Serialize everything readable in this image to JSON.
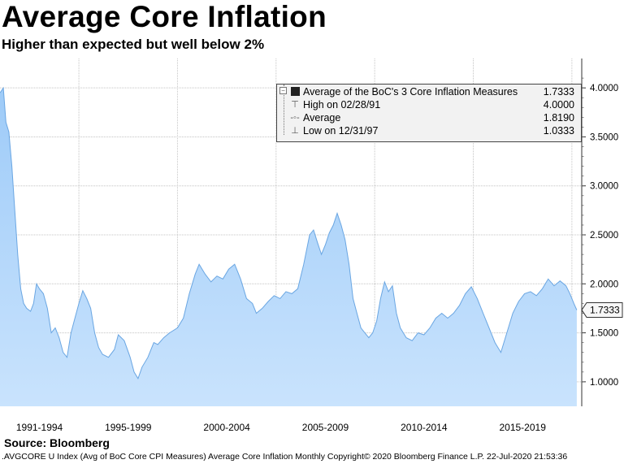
{
  "title": "Average Core Inflation",
  "subtitle": "Higher than expected but well below 2%",
  "source": "Source: Bloomberg",
  "footer": ".AVGCORE U Index (Avg of BoC Core CPI Measures) Average Core Inflation  Monthly Copyright© 2020 Bloomberg Finance L.P. 22-Jul-2020 21:53:36",
  "legend": {
    "items": [
      {
        "label": "Average of the BoC's 3 Core Inflation Measures",
        "value": "1.7333",
        "icon": "filled-square-icon"
      },
      {
        "label": "High on 02/28/91",
        "value": "4.0000",
        "icon": "high-marker-icon"
      },
      {
        "label": "Average",
        "value": "1.8190",
        "icon": "average-line-icon"
      },
      {
        "label": "Low on 12/31/97",
        "value": "1.0333",
        "icon": "low-marker-icon"
      }
    ]
  },
  "last_value_label": "1.7333",
  "colors": {
    "fill": "#a9d1fa",
    "fill_bottom": "#c6e2fd",
    "line": "#4a8fd4",
    "grid": "#bdbdbd"
  },
  "chart_data": {
    "type": "area",
    "title": "Average Core Inflation",
    "subtitle": "Higher than expected but well below 2%",
    "xlabel": "",
    "ylabel": "",
    "x_range": [
      1991.0,
      2020.5
    ],
    "ylim": [
      0.75,
      4.3
    ],
    "y_ticks": [
      "1.0000",
      "1.5000",
      "2.0000",
      "2.5000",
      "3.0000",
      "3.5000",
      "4.0000"
    ],
    "y_tick_values": [
      1.0,
      1.5,
      2.0,
      2.5,
      3.0,
      3.5,
      4.0
    ],
    "x_tick_labels": [
      "1991-1994",
      "1995-1999",
      "2000-2004",
      "2005-2009",
      "2010-2014",
      "2015-2019"
    ],
    "x_tick_centers": [
      1993.0,
      1997.5,
      2002.5,
      2007.5,
      2012.5,
      2017.5
    ],
    "grid": true,
    "legend_position": "top-right",
    "series": [
      {
        "name": "Average of the BoC's 3 Core Inflation Measures",
        "points": [
          [
            1991.0,
            3.95
          ],
          [
            1991.17,
            4.0
          ],
          [
            1991.3,
            3.65
          ],
          [
            1991.45,
            3.55
          ],
          [
            1991.6,
            3.2
          ],
          [
            1991.75,
            2.75
          ],
          [
            1991.9,
            2.3
          ],
          [
            1992.05,
            1.95
          ],
          [
            1992.2,
            1.8
          ],
          [
            1992.35,
            1.75
          ],
          [
            1992.55,
            1.72
          ],
          [
            1992.7,
            1.8
          ],
          [
            1992.85,
            2.0
          ],
          [
            1993.0,
            1.95
          ],
          [
            1993.2,
            1.9
          ],
          [
            1993.4,
            1.75
          ],
          [
            1993.6,
            1.5
          ],
          [
            1993.8,
            1.55
          ],
          [
            1994.0,
            1.45
          ],
          [
            1994.2,
            1.3
          ],
          [
            1994.4,
            1.25
          ],
          [
            1994.6,
            1.5
          ],
          [
            1994.8,
            1.65
          ],
          [
            1995.0,
            1.8
          ],
          [
            1995.2,
            1.93
          ],
          [
            1995.4,
            1.85
          ],
          [
            1995.6,
            1.75
          ],
          [
            1995.8,
            1.5
          ],
          [
            1996.0,
            1.35
          ],
          [
            1996.2,
            1.28
          ],
          [
            1996.5,
            1.25
          ],
          [
            1996.8,
            1.33
          ],
          [
            1997.0,
            1.48
          ],
          [
            1997.3,
            1.42
          ],
          [
            1997.6,
            1.25
          ],
          [
            1997.8,
            1.1
          ],
          [
            1998.0,
            1.0333
          ],
          [
            1998.2,
            1.15
          ],
          [
            1998.5,
            1.25
          ],
          [
            1998.8,
            1.4
          ],
          [
            1999.0,
            1.38
          ],
          [
            1999.3,
            1.45
          ],
          [
            1999.6,
            1.5
          ],
          [
            2000.0,
            1.55
          ],
          [
            2000.3,
            1.65
          ],
          [
            2000.6,
            1.9
          ],
          [
            2000.9,
            2.1
          ],
          [
            2001.1,
            2.2
          ],
          [
            2001.4,
            2.1
          ],
          [
            2001.7,
            2.02
          ],
          [
            2002.0,
            2.08
          ],
          [
            2002.3,
            2.05
          ],
          [
            2002.6,
            2.15
          ],
          [
            2002.9,
            2.2
          ],
          [
            2003.2,
            2.05
          ],
          [
            2003.5,
            1.85
          ],
          [
            2003.8,
            1.8
          ],
          [
            2004.0,
            1.7
          ],
          [
            2004.3,
            1.75
          ],
          [
            2004.6,
            1.82
          ],
          [
            2004.9,
            1.88
          ],
          [
            2005.2,
            1.85
          ],
          [
            2005.5,
            1.92
          ],
          [
            2005.8,
            1.9
          ],
          [
            2006.1,
            1.95
          ],
          [
            2006.4,
            2.2
          ],
          [
            2006.7,
            2.5
          ],
          [
            2006.9,
            2.55
          ],
          [
            2007.1,
            2.42
          ],
          [
            2007.3,
            2.3
          ],
          [
            2007.5,
            2.4
          ],
          [
            2007.7,
            2.52
          ],
          [
            2007.9,
            2.6
          ],
          [
            2008.1,
            2.72
          ],
          [
            2008.3,
            2.6
          ],
          [
            2008.5,
            2.45
          ],
          [
            2008.7,
            2.2
          ],
          [
            2008.9,
            1.85
          ],
          [
            2009.1,
            1.7
          ],
          [
            2009.3,
            1.55
          ],
          [
            2009.5,
            1.5
          ],
          [
            2009.7,
            1.45
          ],
          [
            2009.9,
            1.5
          ],
          [
            2010.1,
            1.62
          ],
          [
            2010.3,
            1.85
          ],
          [
            2010.5,
            2.02
          ],
          [
            2010.7,
            1.92
          ],
          [
            2010.9,
            1.98
          ],
          [
            2011.1,
            1.7
          ],
          [
            2011.3,
            1.55
          ],
          [
            2011.6,
            1.45
          ],
          [
            2011.9,
            1.42
          ],
          [
            2012.2,
            1.5
          ],
          [
            2012.5,
            1.48
          ],
          [
            2012.8,
            1.55
          ],
          [
            2013.1,
            1.65
          ],
          [
            2013.4,
            1.7
          ],
          [
            2013.7,
            1.65
          ],
          [
            2014.0,
            1.7
          ],
          [
            2014.3,
            1.78
          ],
          [
            2014.6,
            1.9
          ],
          [
            2014.9,
            1.97
          ],
          [
            2015.2,
            1.85
          ],
          [
            2015.5,
            1.7
          ],
          [
            2015.8,
            1.55
          ],
          [
            2016.1,
            1.4
          ],
          [
            2016.4,
            1.3
          ],
          [
            2016.7,
            1.5
          ],
          [
            2017.0,
            1.7
          ],
          [
            2017.3,
            1.82
          ],
          [
            2017.6,
            1.9
          ],
          [
            2017.9,
            1.92
          ],
          [
            2018.2,
            1.88
          ],
          [
            2018.5,
            1.95
          ],
          [
            2018.8,
            2.05
          ],
          [
            2019.1,
            1.98
          ],
          [
            2019.4,
            2.03
          ],
          [
            2019.7,
            1.98
          ],
          [
            2019.9,
            1.9
          ],
          [
            2020.1,
            1.8
          ],
          [
            2020.25,
            1.7333
          ]
        ]
      }
    ],
    "high": {
      "date": "02/28/91",
      "value": 4.0
    },
    "average": 1.819,
    "low": {
      "date": "12/31/97",
      "value": 1.0333
    },
    "last": 1.7333
  }
}
